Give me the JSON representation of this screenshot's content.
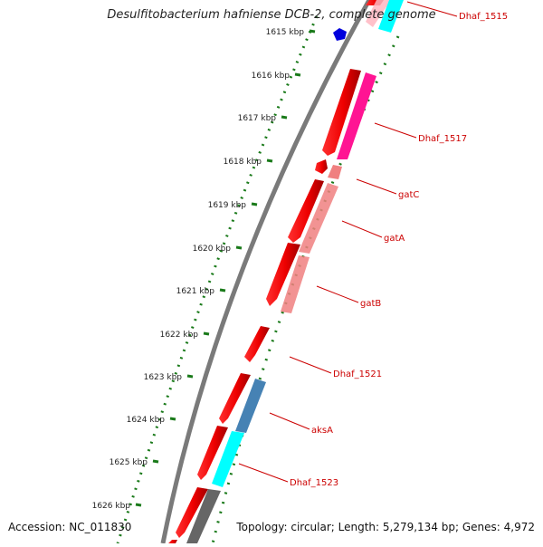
{
  "title": "Desulfitobacterium hafniense DCB-2, complete genome",
  "footer": {
    "accession": "Accession: NC_011830",
    "summary": "Topology: circular; Length: 5,279,134 bp; Genes: 4,972"
  },
  "scale_ticks": [
    "1615 kbp",
    "1616 kbp",
    "1617 kbp",
    "1618 kbp",
    "1619 kbp",
    "1620 kbp",
    "1621 kbp",
    "1622 kbp",
    "1623 kbp",
    "1624 kbp",
    "1625 kbp",
    "1626 kbp"
  ],
  "gene_labels": [
    "Dhaf_1515",
    "Dhaf_1517",
    "gatC",
    "gatA",
    "gatB",
    "Dhaf_1521",
    "aksA",
    "Dhaf_1523"
  ],
  "colors": {
    "cds_strand": "#ff0000",
    "backbone": "#888888",
    "tick": "#1a7a1a",
    "label": "#cc0000",
    "magenta": "#ff1493",
    "salmon": "#f08080",
    "steelblue": "#4682b4",
    "cyan": "#00ffff",
    "marker": "#0000dd"
  }
}
